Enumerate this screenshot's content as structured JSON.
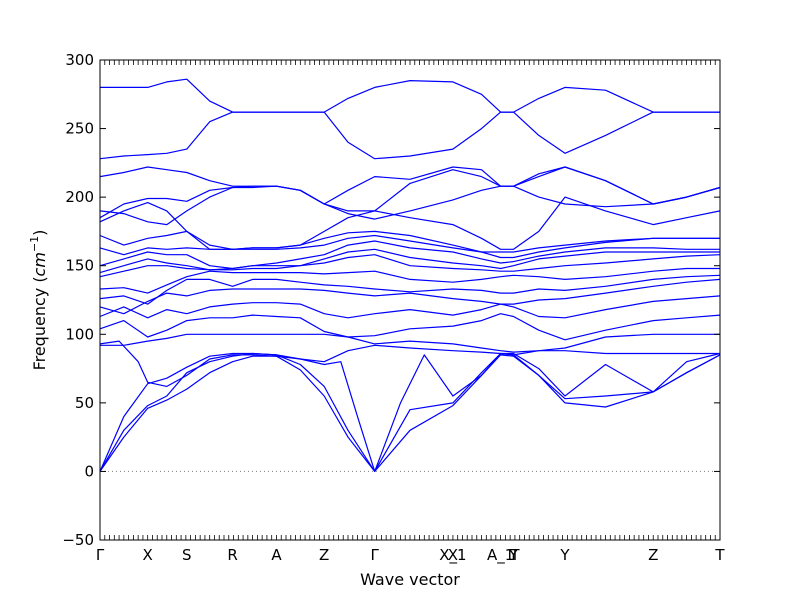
{
  "chart_data": {
    "type": "line",
    "title": "",
    "xlabel": "Wave vector",
    "ylabel": "Frequency ($cm^{-1}$)",
    "ylabel_text": "Frequency (",
    "ylabel_unit_base": "cm",
    "ylabel_unit_exp": "−1",
    "ylabel_close": ")",
    "ylim": [
      -50,
      300
    ],
    "yticks": [
      -50,
      0,
      50,
      100,
      150,
      200,
      250,
      300
    ],
    "grid": false,
    "legend": "none",
    "color": "#0000ff",
    "zero_line": {
      "y": 0,
      "style": "dotted",
      "color": "#808080"
    },
    "xlim": [
      0,
      13.0
    ],
    "high_symmetry_points": [
      {
        "label": "Γ",
        "x": 0.0
      },
      {
        "label": "X",
        "x": 1.0
      },
      {
        "label": "S",
        "x": 1.82
      },
      {
        "label": "R",
        "x": 2.78
      },
      {
        "label": "A",
        "x": 3.7
      },
      {
        "label": "Z",
        "x": 4.7
      },
      {
        "label": "Γ",
        "x": 5.76
      },
      {
        "label": "X_1",
        "x": 7.4
      },
      {
        "label": "X",
        "x": 7.4
      },
      {
        "label": "A_1",
        "x": 8.4
      },
      {
        "label": "T",
        "x": 8.7
      },
      {
        "label": "Y",
        "x": 8.67
      },
      {
        "label": "Y",
        "x": 9.75
      },
      {
        "label": "Z",
        "x": 11.6
      },
      {
        "label": "T",
        "x": 13.0
      }
    ],
    "series": [
      {
        "x": [
          0,
          0.5,
          1.0,
          1.4,
          1.82,
          2.3,
          2.78,
          3.2,
          3.7,
          4.2,
          4.7,
          5.2,
          5.76,
          6.5,
          7.4,
          8.0,
          8.4,
          8.67,
          9.2,
          9.75,
          10.6,
          11.6,
          12.3,
          13.0
        ],
        "y": [
          0,
          25,
          46,
          52,
          60,
          72,
          80,
          84,
          84,
          74,
          55,
          25,
          0,
          30,
          48,
          70,
          85,
          84,
          70,
          53,
          55,
          58,
          72,
          85
        ]
      },
      {
        "x": [
          0,
          0.5,
          1.0,
          1.4,
          1.82,
          2.3,
          2.78,
          3.2,
          3.7,
          4.2,
          4.7,
          5.2,
          5.76,
          6.5,
          7.4,
          8.0,
          8.4,
          8.67,
          9.2,
          9.75,
          10.6,
          11.6,
          12.3,
          13.0
        ],
        "y": [
          0,
          30,
          48,
          55,
          72,
          80,
          84,
          86,
          85,
          78,
          62,
          30,
          0,
          45,
          50,
          72,
          86,
          85,
          70,
          50,
          47,
          58,
          72,
          85
        ]
      },
      {
        "x": [
          0,
          0.5,
          1.0,
          1.4,
          1.82,
          2.3,
          2.78,
          3.2,
          3.7,
          4.2,
          4.7,
          5.05,
          5.4,
          5.76,
          6.3,
          6.8,
          7.4,
          8.0,
          8.4,
          8.67,
          9.2,
          9.75,
          10.6,
          11.6,
          12.3,
          13.0
        ],
        "y": [
          0,
          40,
          64,
          68,
          76,
          84,
          86,
          86,
          85,
          82,
          78,
          80,
          40,
          0,
          50,
          85,
          55,
          70,
          86,
          86,
          75,
          55,
          78,
          58,
          80,
          86
        ]
      },
      {
        "x": [
          0,
          0.4,
          0.8,
          1.0,
          1.4,
          1.82,
          2.3,
          2.78,
          3.2,
          3.7,
          4.2,
          4.7,
          5.2,
          5.76,
          6.5,
          7.4,
          8.0,
          8.4,
          8.67,
          9.2,
          9.75,
          10.6,
          11.6,
          12.3,
          13.0
        ],
        "y": [
          93,
          95,
          80,
          65,
          62,
          70,
          82,
          85,
          85,
          84,
          82,
          80,
          88,
          92,
          90,
          88,
          87,
          86,
          85,
          88,
          88,
          86,
          86,
          86,
          86
        ]
      },
      {
        "x": [
          0,
          0.5,
          1.0,
          1.4,
          1.82,
          2.3,
          2.78,
          3.2,
          3.7,
          4.2,
          4.7,
          5.2,
          5.76,
          6.5,
          7.4,
          8.0,
          8.4,
          8.67,
          9.2,
          9.75,
          10.6,
          11.6,
          12.3,
          13.0
        ],
        "y": [
          92,
          92,
          95,
          97,
          100,
          100,
          100,
          100,
          100,
          100,
          100,
          98,
          93,
          95,
          93,
          90,
          88,
          87,
          88,
          90,
          98,
          100,
          100,
          100
        ]
      },
      {
        "x": [
          0,
          0.5,
          1.0,
          1.4,
          1.82,
          2.3,
          2.78,
          3.2,
          3.7,
          4.2,
          4.7,
          5.2,
          5.76,
          6.5,
          7.4,
          8.0,
          8.4,
          8.67,
          9.2,
          9.75,
          10.6,
          11.6,
          12.3,
          13.0
        ],
        "y": [
          104,
          110,
          98,
          103,
          110,
          112,
          112,
          114,
          113,
          112,
          102,
          98,
          99,
          104,
          106,
          110,
          115,
          113,
          103,
          96,
          103,
          110,
          112,
          114
        ]
      },
      {
        "x": [
          0,
          0.5,
          1.0,
          1.4,
          1.82,
          2.3,
          2.78,
          3.2,
          3.7,
          4.2,
          4.7,
          5.2,
          5.76,
          6.5,
          7.4,
          8.0,
          8.4,
          8.67,
          9.2,
          9.75,
          10.6,
          11.6,
          12.3,
          13.0
        ],
        "y": [
          113,
          120,
          112,
          118,
          115,
          120,
          122,
          123,
          123,
          122,
          115,
          112,
          115,
          118,
          114,
          118,
          122,
          120,
          113,
          112,
          118,
          124,
          126,
          128
        ]
      },
      {
        "x": [
          0,
          0.5,
          1.0,
          1.4,
          1.82,
          2.3,
          2.78,
          3.2,
          3.7,
          4.2,
          4.7,
          5.2,
          5.76,
          6.5,
          7.4,
          8.0,
          8.4,
          8.67,
          9.2,
          9.75,
          10.6,
          11.6,
          12.3,
          13.0
        ],
        "y": [
          120,
          115,
          124,
          130,
          128,
          132,
          133,
          133,
          133,
          133,
          132,
          130,
          128,
          130,
          126,
          124,
          122,
          122,
          125,
          126,
          130,
          135,
          138,
          140
        ]
      },
      {
        "x": [
          0,
          0.5,
          1.0,
          1.4,
          1.82,
          2.3,
          2.78,
          3.2,
          3.7,
          4.2,
          4.7,
          5.2,
          5.76,
          6.5,
          7.4,
          8.0,
          8.4,
          8.67,
          9.2,
          9.75,
          10.6,
          11.6,
          12.3,
          13.0
        ],
        "y": [
          126,
          128,
          122,
          132,
          140,
          140,
          135,
          140,
          140,
          138,
          136,
          135,
          133,
          131,
          133,
          132,
          130,
          130,
          133,
          132,
          135,
          140,
          142,
          143
        ]
      },
      {
        "x": [
          0,
          0.5,
          1.0,
          1.4,
          1.82,
          2.3,
          2.78,
          3.2,
          3.7,
          4.2,
          4.7,
          5.2,
          5.76,
          6.5,
          7.4,
          8.0,
          8.4,
          8.67,
          9.2,
          9.75,
          10.6,
          11.6,
          12.3,
          13.0
        ],
        "y": [
          133,
          134,
          130,
          136,
          142,
          146,
          145,
          145,
          145,
          145,
          144,
          145,
          146,
          140,
          138,
          140,
          142,
          143,
          142,
          140,
          142,
          146,
          148,
          148
        ]
      },
      {
        "x": [
          0,
          0.5,
          1.0,
          1.4,
          1.82,
          2.3,
          2.78,
          3.2,
          3.7,
          4.2,
          4.7,
          5.2,
          5.76,
          6.5,
          7.4,
          8.0,
          8.4,
          8.67,
          9.2,
          9.75,
          10.6,
          11.6,
          12.3,
          13.0
        ],
        "y": [
          142,
          146,
          150,
          150,
          148,
          147,
          147,
          148,
          148,
          150,
          152,
          156,
          158,
          150,
          148,
          147,
          146,
          146,
          148,
          150,
          152,
          155,
          157,
          158
        ]
      },
      {
        "x": [
          0,
          0.5,
          1.0,
          1.4,
          1.82,
          2.3,
          2.78,
          3.2,
          3.7,
          4.2,
          4.7,
          5.2,
          5.76,
          6.5,
          7.4,
          8.0,
          8.4,
          8.67,
          9.2,
          9.75,
          10.6,
          11.6,
          12.3,
          13.0
        ],
        "y": [
          145,
          150,
          155,
          152,
          150,
          147,
          148,
          150,
          150,
          150,
          155,
          160,
          162,
          156,
          152,
          150,
          148,
          150,
          155,
          157,
          160,
          160,
          160,
          160
        ]
      },
      {
        "x": [
          0,
          0.5,
          1.0,
          1.4,
          1.82,
          2.3,
          2.78,
          3.2,
          3.7,
          4.2,
          4.7,
          5.2,
          5.76,
          6.5,
          7.4,
          8.0,
          8.4,
          8.67,
          9.2,
          9.75,
          10.6,
          11.6,
          12.3,
          13.0
        ],
        "y": [
          150,
          155,
          160,
          158,
          158,
          150,
          148,
          150,
          152,
          155,
          158,
          165,
          168,
          163,
          160,
          155,
          152,
          153,
          157,
          160,
          163,
          163,
          162,
          162
        ]
      },
      {
        "x": [
          0,
          0.5,
          1.0,
          1.4,
          1.82,
          2.3,
          2.78,
          3.2,
          3.7,
          4.2,
          4.7,
          5.2,
          5.76,
          6.5,
          7.4,
          8.0,
          8.4,
          8.67,
          9.2,
          9.75,
          10.6,
          11.6,
          12.3,
          13.0
        ],
        "y": [
          163,
          158,
          163,
          162,
          163,
          162,
          162,
          162,
          162,
          163,
          165,
          170,
          172,
          168,
          163,
          160,
          156,
          156,
          160,
          163,
          167,
          170,
          170,
          170
        ]
      },
      {
        "x": [
          0,
          0.5,
          1.0,
          1.4,
          1.82,
          2.3,
          2.78,
          3.2,
          3.7,
          4.2,
          4.7,
          5.2,
          5.76,
          6.5,
          7.4,
          8.0,
          8.4,
          8.67,
          9.2,
          9.75,
          10.6,
          11.6,
          12.3,
          13.0
        ],
        "y": [
          172,
          165,
          170,
          172,
          175,
          162,
          162,
          163,
          163,
          165,
          170,
          174,
          175,
          172,
          165,
          160,
          160,
          160,
          163,
          165,
          168,
          170,
          170,
          170
        ]
      },
      {
        "x": [
          0,
          0.5,
          1.0,
          1.4,
          1.82,
          2.3,
          2.78,
          3.2,
          3.7,
          4.2,
          4.7,
          5.2,
          5.76,
          6.5,
          7.4,
          8.0,
          8.4,
          8.67,
          9.2,
          9.75,
          10.6,
          11.6,
          12.3,
          13.0
        ],
        "y": [
          182,
          190,
          196,
          190,
          175,
          165,
          162,
          163,
          163,
          165,
          175,
          185,
          190,
          185,
          180,
          170,
          162,
          162,
          175,
          200,
          190,
          180,
          185,
          190
        ]
      },
      {
        "x": [
          0,
          0.5,
          1.0,
          1.4,
          1.82,
          2.3,
          2.78,
          3.2,
          3.7,
          4.2,
          4.7,
          5.2,
          5.76,
          6.5,
          7.4,
          8.0,
          8.4,
          8.67,
          9.2,
          9.75,
          10.6,
          11.6,
          12.3,
          13.0
        ],
        "y": [
          185,
          195,
          199,
          199,
          197,
          205,
          207,
          207,
          208,
          205,
          195,
          188,
          184,
          190,
          198,
          205,
          208,
          208,
          200,
          195,
          193,
          195,
          200,
          207
        ]
      },
      {
        "x": [
          0,
          0.5,
          1.0,
          1.4,
          1.82,
          2.3,
          2.78,
          3.2,
          3.7,
          4.2,
          4.7,
          5.2,
          5.76,
          6.5,
          7.4,
          8.0,
          8.4,
          8.67,
          9.2,
          9.75,
          10.6,
          11.6,
          12.3,
          13.0
        ],
        "y": [
          190,
          188,
          182,
          180,
          190,
          200,
          207,
          208,
          208,
          205,
          195,
          190,
          190,
          210,
          220,
          215,
          208,
          208,
          215,
          222,
          212,
          195,
          200,
          207
        ]
      },
      {
        "x": [
          0,
          0.5,
          1.0,
          1.4,
          1.82,
          2.3,
          2.78,
          3.2,
          3.7,
          4.2,
          4.7,
          5.2,
          5.76,
          6.5,
          7.4,
          8.0,
          8.4,
          8.67,
          9.2,
          9.75,
          10.6,
          11.6,
          12.3,
          13.0
        ],
        "y": [
          215,
          218,
          222,
          220,
          218,
          212,
          208,
          208,
          208,
          205,
          195,
          205,
          215,
          213,
          222,
          220,
          208,
          208,
          217,
          222,
          212,
          195,
          200,
          207
        ]
      },
      {
        "x": [
          0,
          0.5,
          1.0,
          1.4,
          1.82,
          2.3,
          2.78,
          3.2,
          3.7,
          4.2,
          4.7,
          5.2,
          5.76,
          6.5,
          7.4,
          8.0,
          8.4,
          8.67,
          9.2,
          9.75,
          10.6,
          11.6,
          12.3,
          13.0
        ],
        "y": [
          228,
          230,
          231,
          232,
          235,
          255,
          262,
          262,
          262,
          262,
          262,
          240,
          228,
          230,
          235,
          250,
          262,
          262,
          245,
          232,
          245,
          262,
          262,
          262
        ]
      },
      {
        "x": [
          0,
          0.5,
          1.0,
          1.4,
          1.82,
          2.3,
          2.78,
          3.2,
          3.7,
          4.2,
          4.7,
          5.2,
          5.76,
          6.5,
          7.4,
          8.0,
          8.4,
          8.67,
          9.2,
          9.75,
          10.6,
          11.6,
          12.3,
          13.0
        ],
        "y": [
          280,
          280,
          280,
          284,
          286,
          270,
          262,
          262,
          262,
          262,
          262,
          272,
          280,
          285,
          284,
          275,
          262,
          262,
          272,
          280,
          278,
          262,
          262,
          262
        ]
      }
    ]
  }
}
